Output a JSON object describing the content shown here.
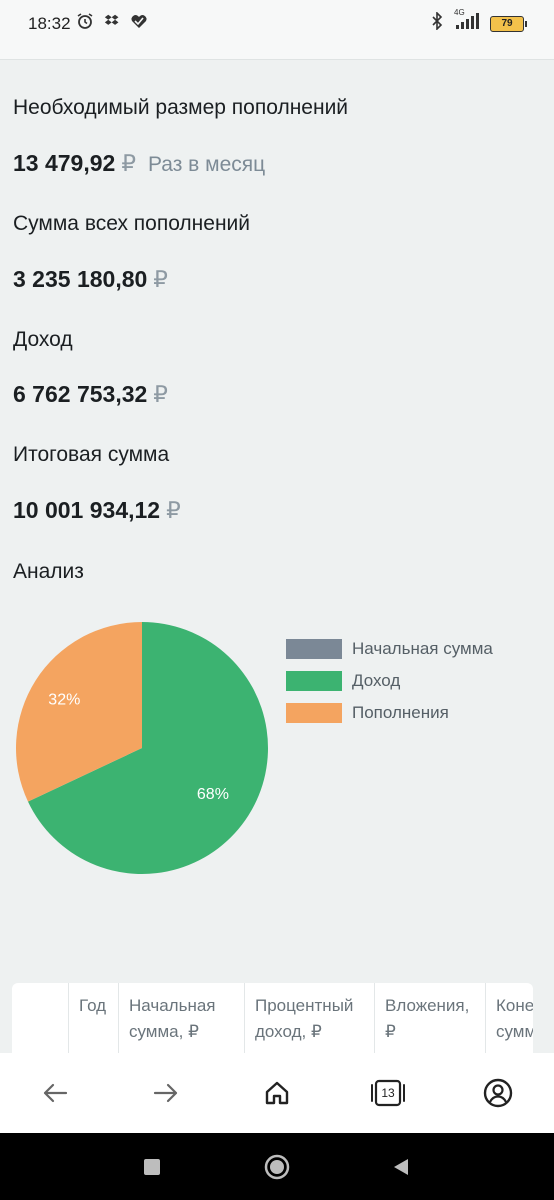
{
  "status_bar": {
    "time": "18:32",
    "network": "4G",
    "battery": "79"
  },
  "results": {
    "required_label": "Необходимый размер пополнений",
    "required_value": "13 479,92",
    "required_frequency": "Раз в месяц",
    "total_deposits_label": "Сумма всех пополнений",
    "total_deposits_value": "3 235 180,80",
    "income_label": "Доход",
    "income_value": "6 762 753,32",
    "final_label": "Итоговая сумма",
    "final_value": "10 001 934,12",
    "currency": "₽"
  },
  "analysis": {
    "title": "Анализ"
  },
  "chart_data": {
    "type": "pie",
    "slices": [
      {
        "name": "Начальная сумма",
        "value": 0,
        "label": "0%",
        "color": "#7b8896"
      },
      {
        "name": "Доход",
        "value": 68,
        "label": "68%",
        "color": "#3cb371"
      },
      {
        "name": "Пополнения",
        "value": 32,
        "label": "32%",
        "color": "#f4a460"
      }
    ],
    "legend": [
      "Начальная сумма",
      "Доход",
      "Пополнения"
    ],
    "legend_position": "right"
  },
  "table": {
    "headers": [
      "",
      "Год",
      "Начальная сумма, ₽",
      "Процентный доход, ₽",
      "Вложения, ₽",
      "Конечная сумма"
    ],
    "header_lines": [
      [
        ""
      ],
      [
        "Год"
      ],
      [
        "Начальная",
        "сумма, ₽"
      ],
      [
        "Процентный",
        "доход, ₽"
      ],
      [
        "Вложения,",
        "₽"
      ],
      [
        "Коне",
        "сумм"
      ]
    ]
  },
  "browser_nav": {
    "tabs_count": "13",
    "icons": [
      "back-arrow-icon",
      "forward-arrow-icon",
      "home-icon",
      "tabs-icon",
      "account-icon"
    ]
  },
  "colors": {
    "background": "#eef1f1",
    "income": "#3cb371",
    "deposits": "#f4a460",
    "initial": "#7b8896"
  }
}
